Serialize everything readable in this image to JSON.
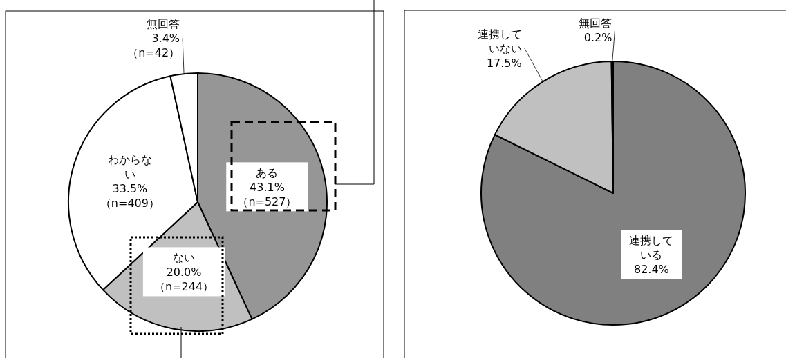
{
  "chart_data": [
    {
      "type": "pie",
      "categories": [
        "ある",
        "ない",
        "わからない",
        "無回答"
      ],
      "values": [
        43.1,
        20.0,
        33.5,
        3.4
      ],
      "colors": [
        "#969696",
        "#c0c0c0",
        "#ffffff",
        "#ffffff"
      ],
      "value_labels": [
        "43.1%\n（n=527）",
        "20.0%\n（n=244）",
        "33.5%\n（n=409）",
        "3.4%\n（n=42）"
      ]
    },
    {
      "type": "pie",
      "categories": [
        "連携している",
        "連携していない",
        "無回答"
      ],
      "values": [
        82.4,
        17.5,
        0.2
      ],
      "colors": [
        "#808080",
        "#c0c0c0",
        "#ffffff"
      ],
      "value_labels": [
        "82.4%",
        "17.5%",
        "0.2%"
      ]
    }
  ]
}
